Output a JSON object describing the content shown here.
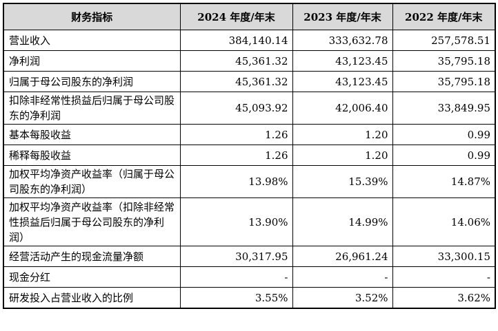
{
  "table": {
    "headers": [
      "财务指标",
      "2024 年度/年末",
      "2023 年度/年末",
      "2022 年度/年末"
    ],
    "rows": [
      {
        "label": "营业收入",
        "values": [
          "384,140.14",
          "333,632.78",
          "257,578.51"
        ]
      },
      {
        "label": "净利润",
        "values": [
          "45,361.32",
          "43,123.45",
          "35,795.18"
        ]
      },
      {
        "label": "归属于母公司股东的净利润",
        "values": [
          "45,361.32",
          "43,123.45",
          "35,795.18"
        ]
      },
      {
        "label": "扣除非经常性损益后归属于母公司股东的净利润",
        "values": [
          "45,093.92",
          "42,006.40",
          "33,849.95"
        ]
      },
      {
        "label": "基本每股收益",
        "values": [
          "1.26",
          "1.20",
          "0.99"
        ]
      },
      {
        "label": "稀释每股收益",
        "values": [
          "1.26",
          "1.20",
          "0.99"
        ]
      },
      {
        "label": "加权平均净资产收益率（归属于母公司股东的净利润）",
        "values": [
          "13.98%",
          "15.39%",
          "14.87%"
        ]
      },
      {
        "label": "加权平均净资产收益率（扣除非经常性损益后归属于母公司股东的净利润）",
        "values": [
          "13.90%",
          "14.99%",
          "14.06%"
        ]
      },
      {
        "label": "经营活动产生的现金流量净额",
        "values": [
          "30,317.95",
          "26,961.24",
          "33,300.15"
        ]
      },
      {
        "label": "现金分红",
        "values": [
          "-",
          "-",
          "-"
        ]
      },
      {
        "label": "研发投入占营业收入的比例",
        "values": [
          "3.55%",
          "3.52%",
          "3.62%"
        ]
      }
    ]
  }
}
